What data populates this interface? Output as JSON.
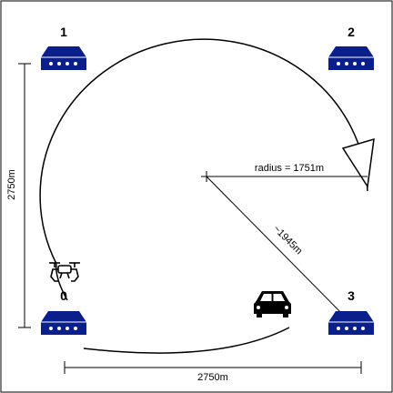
{
  "stations": [
    {
      "label": "1"
    },
    {
      "label": "2"
    },
    {
      "label": "0"
    },
    {
      "label": "3"
    }
  ],
  "dimensions": {
    "width_label": "2750m",
    "height_label": "2750m",
    "radius_label": "radius = 1751m",
    "diagonal_label": "~1945m"
  },
  "icons": {
    "station": "base-station-icon",
    "drone": "drone-icon",
    "car": "car-icon",
    "arrow": "direction-arrow-icon"
  },
  "colors": {
    "station_fill": "#0a1e8c",
    "line": "#000000"
  }
}
